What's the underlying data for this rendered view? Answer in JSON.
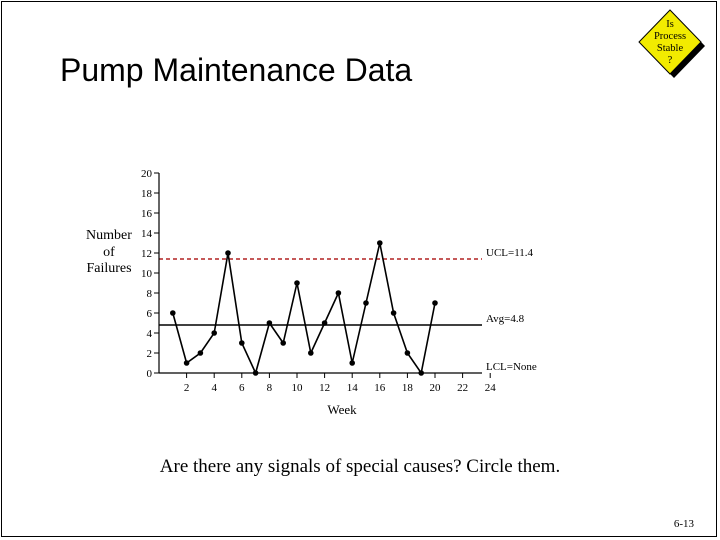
{
  "slide": {
    "title": "Pump Maintenance Data",
    "badge_lines": [
      "Is",
      "Process",
      "Stable",
      "?"
    ],
    "badge_color": "#f2eb00",
    "question": "Are there any signals of special causes?  Circle them.",
    "page_number": "6-13"
  },
  "chart_data": {
    "type": "line",
    "title": "",
    "xlabel": "Week",
    "ylabel_lines": [
      "Number",
      "of",
      "Failures"
    ],
    "xlim": [
      0,
      25
    ],
    "ylim": [
      0,
      20
    ],
    "x_ticks": [
      2,
      4,
      6,
      8,
      10,
      12,
      14,
      16,
      18,
      20,
      22,
      24
    ],
    "y_ticks": [
      0,
      2,
      4,
      6,
      8,
      10,
      12,
      14,
      16,
      18,
      20
    ],
    "series": [
      {
        "x": [
          1,
          2,
          3,
          4,
          5,
          6,
          7,
          8,
          9,
          10,
          11,
          12,
          13,
          14,
          15,
          16,
          17,
          18,
          19,
          20
        ],
        "values": [
          6,
          1,
          2,
          4,
          12,
          3,
          0,
          5,
          3,
          9,
          2,
          5,
          8,
          1,
          7,
          13,
          6,
          2,
          0,
          7
        ]
      }
    ],
    "reference_lines": [
      {
        "label": "UCL=11.4",
        "value": 11.4,
        "style": "dashed",
        "color": "#b22222"
      },
      {
        "label": "Avg=4.8",
        "value": 4.8,
        "style": "solid",
        "color": "#000000"
      },
      {
        "label": "LCL=None",
        "value": 0,
        "style": "none",
        "color": "#000000"
      }
    ],
    "grid": false,
    "legend": "none"
  }
}
